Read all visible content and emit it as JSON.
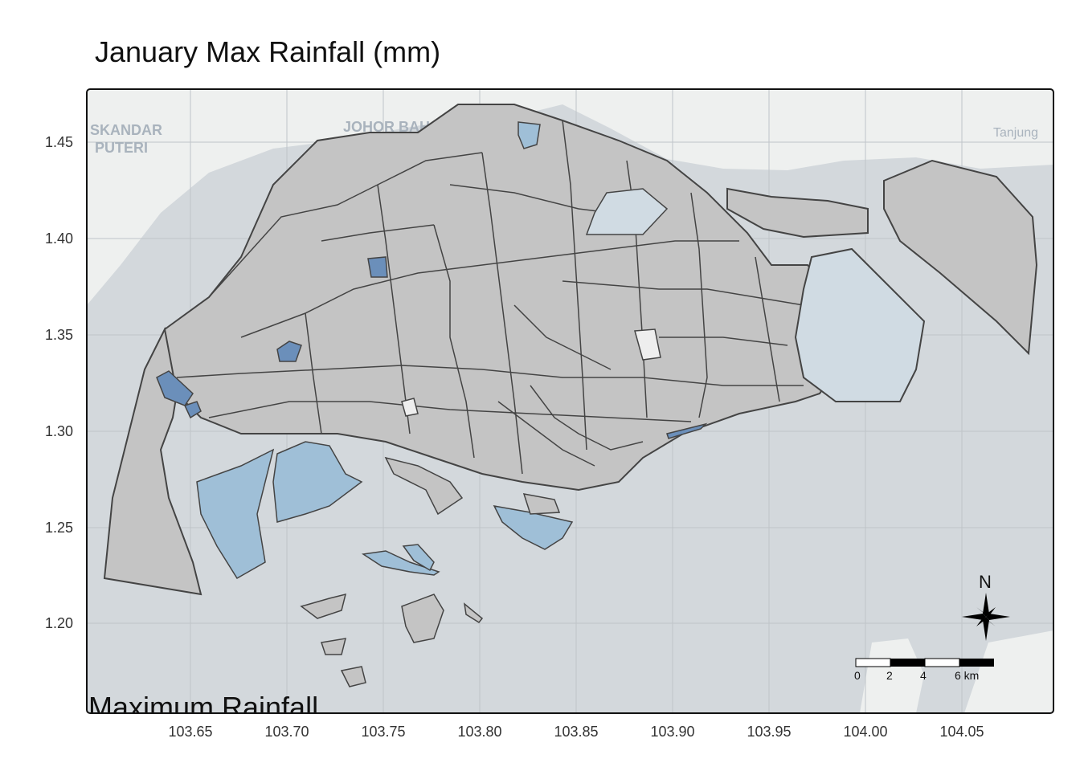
{
  "map": {
    "title": "January Max Rainfall (mm)",
    "legend_title": "Maximum Rainfall",
    "north_label": "N",
    "basemap_labels": [
      "SKANDAR",
      "PUTERI",
      "JOHOR BAH",
      "Tanjung"
    ],
    "scale_bar": {
      "labels": [
        "0",
        "2",
        "4",
        "6 km"
      ]
    },
    "lat_ticks": [
      "1.45",
      "1.40",
      "1.35",
      "1.30",
      "1.25",
      "1.20"
    ],
    "lon_ticks": [
      "103.65",
      "103.70",
      "103.75",
      "103.80",
      "103.85",
      "103.90",
      "103.95",
      "104.00",
      "104.05"
    ],
    "colors": {
      "land_default": "#c4c4c4",
      "rain_low": "#d0dbe3",
      "rain_mid": "#9fbfd7",
      "rain_high": "#6b8fba",
      "no_data": "#eeeeee",
      "sea": "#d3d8dc",
      "basemap_land": "#eef0ef"
    }
  }
}
